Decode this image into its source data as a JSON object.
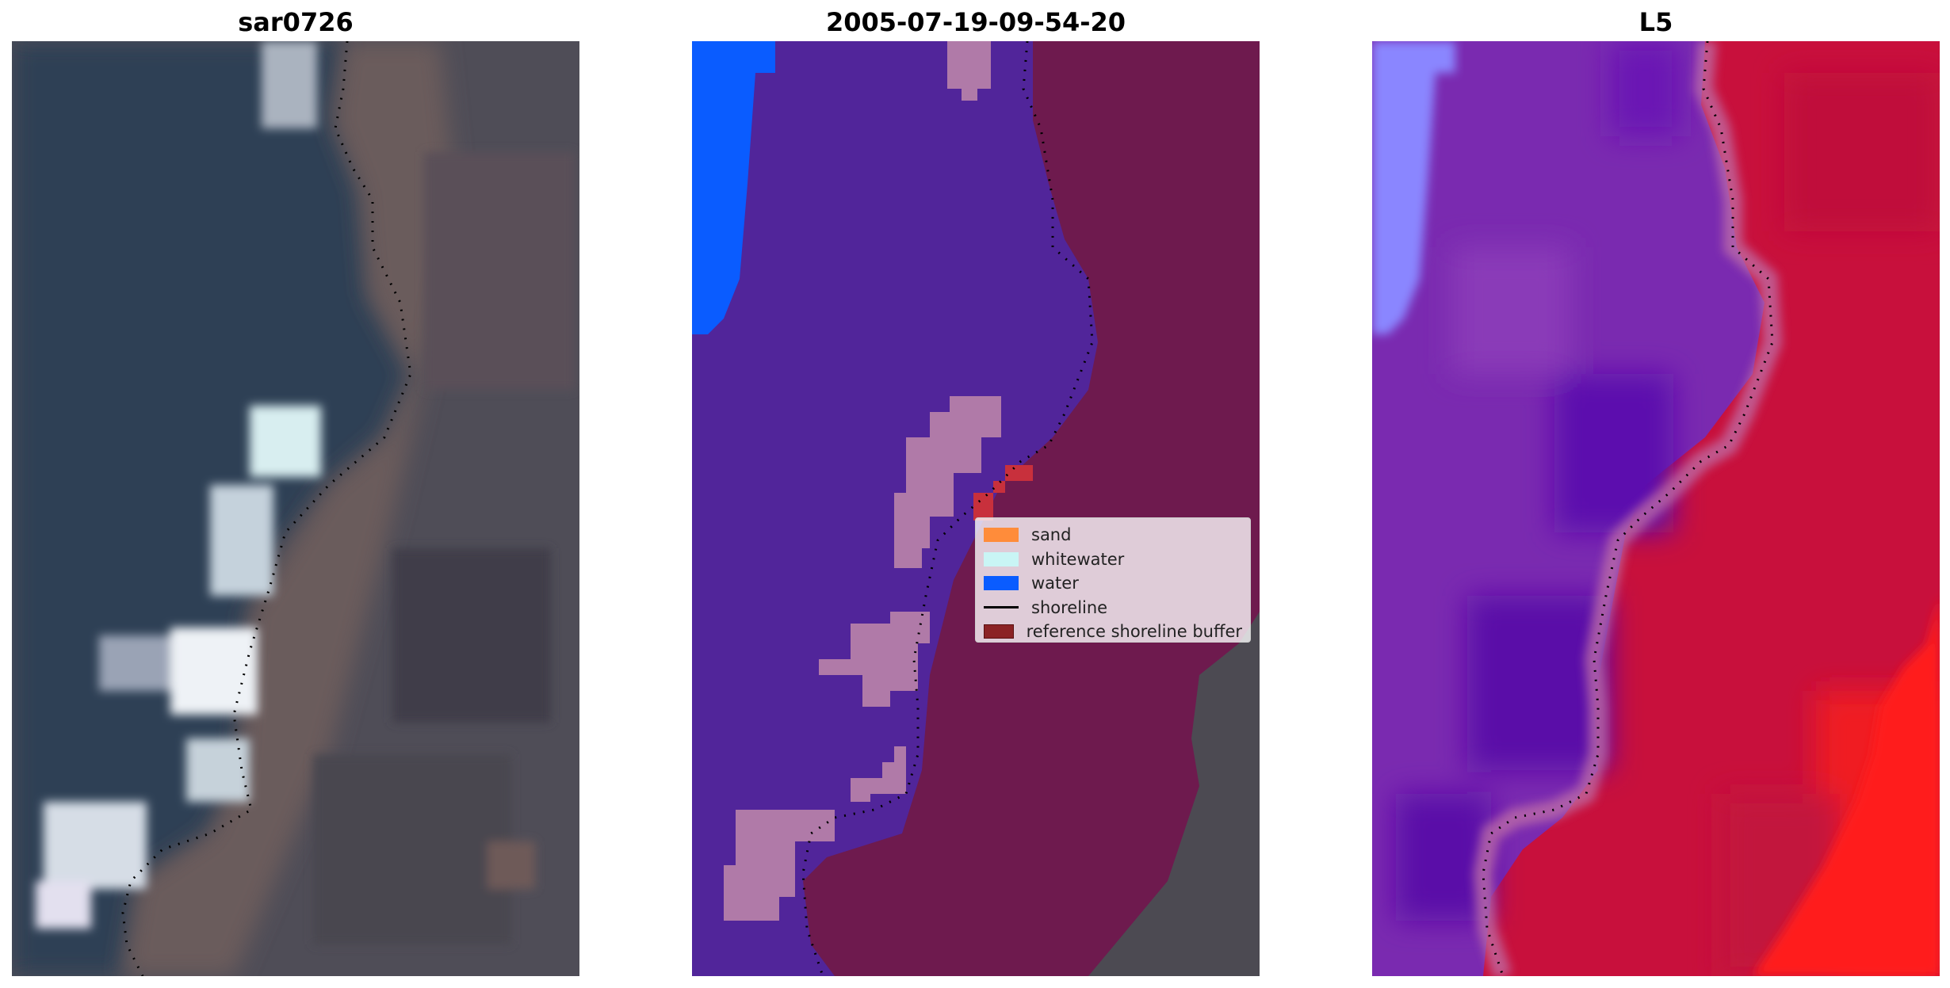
{
  "panels": [
    {
      "title": "sar0726"
    },
    {
      "title": "2005-07-19-09-54-20"
    },
    {
      "title": "L5"
    }
  ],
  "legend": {
    "items": [
      {
        "label": "sand",
        "color": "#ff8c3a",
        "kind": "patch"
      },
      {
        "label": "whitewater",
        "color": "#c9f5f5",
        "kind": "patch"
      },
      {
        "label": "water",
        "color": "#0a5cff",
        "kind": "patch"
      },
      {
        "label": "shoreline",
        "color": "#000000",
        "kind": "line"
      },
      {
        "label": "reference shoreline buffer",
        "color": "#8b2325",
        "kind": "patch"
      }
    ]
  },
  "colors": {
    "rgb_water": "#2e3f55",
    "rgb_land": "#5a5560",
    "class_bg": "#51259a",
    "class_buffer": "#6e1a4e",
    "class_whitewater_overlay": "#b07aa8",
    "class_water": "#0a5cff",
    "class_land_exposed": "#4c4a52",
    "index_low": "#7a2ab0",
    "index_high": "#c8103c",
    "index_water": "#8a86ff"
  }
}
